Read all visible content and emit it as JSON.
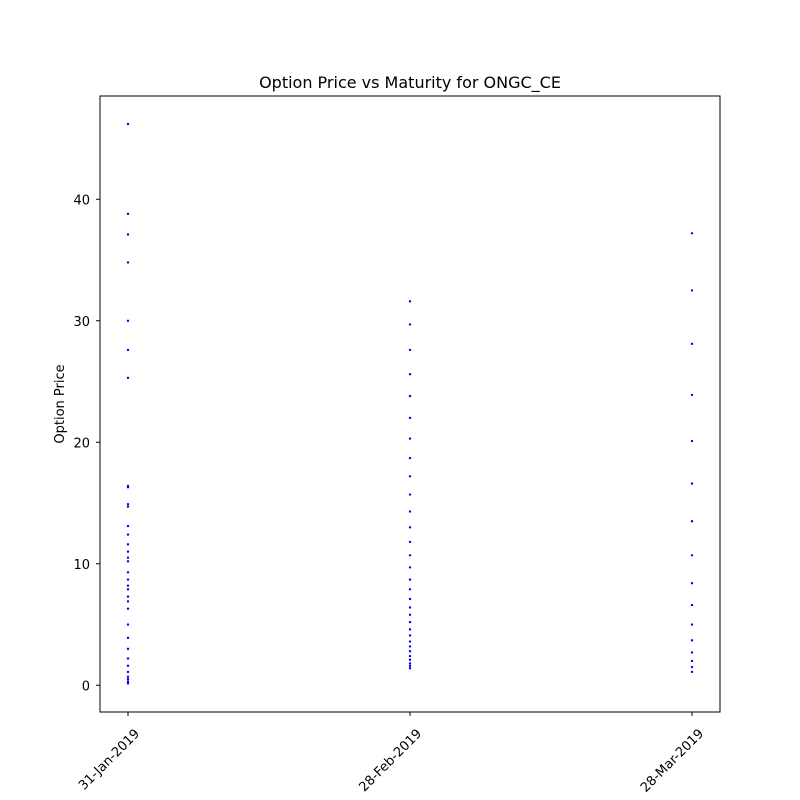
{
  "chart_data": {
    "type": "scatter",
    "title": "Option Price vs Maturity for ONGC_CE",
    "xlabel": "",
    "ylabel": "Option Price",
    "categories": [
      "31-Jan-2019",
      "28-Feb-2019",
      "28-Mar-2019"
    ],
    "ylim": [
      -2.2,
      48.5
    ],
    "yticks": [
      0,
      10,
      20,
      30,
      40
    ],
    "grid": false,
    "legend": "none",
    "marker_color": "#0000ff",
    "series": [
      {
        "category": "31-Jan-2019",
        "values": [
          46.2,
          38.8,
          37.1,
          34.8,
          30.0,
          27.6,
          25.3,
          16.4,
          16.3,
          14.9,
          14.7,
          13.1,
          12.4,
          11.6,
          11.0,
          10.5,
          10.2,
          9.3,
          8.7,
          8.2,
          7.9,
          7.3,
          6.9,
          6.3,
          5.0,
          3.9,
          3.0,
          2.2,
          1.6,
          1.1,
          0.7,
          0.5,
          0.3,
          0.15
        ]
      },
      {
        "category": "28-Feb-2019",
        "values": [
          31.6,
          29.7,
          27.6,
          25.6,
          23.8,
          22.0,
          20.3,
          18.7,
          17.2,
          15.7,
          14.3,
          13.0,
          11.8,
          10.7,
          9.7,
          8.7,
          7.9,
          7.1,
          6.4,
          5.8,
          5.2,
          4.6,
          4.1,
          3.6,
          3.2,
          2.8,
          2.4,
          2.1,
          1.8,
          1.6,
          1.4
        ]
      },
      {
        "category": "28-Mar-2019",
        "values": [
          37.2,
          32.5,
          28.1,
          23.9,
          20.1,
          16.6,
          13.5,
          10.7,
          8.4,
          6.6,
          5.0,
          3.7,
          2.7,
          2.0,
          1.5,
          1.1
        ]
      }
    ]
  }
}
